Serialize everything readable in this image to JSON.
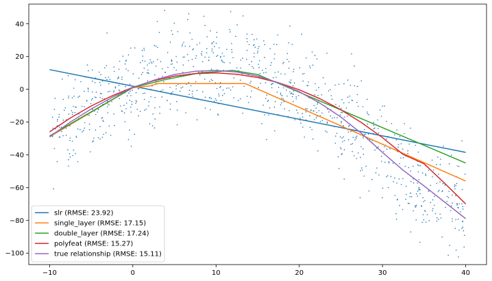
{
  "chart_data": {
    "type": "scatter",
    "title": "",
    "xlabel": "",
    "ylabel": "",
    "xlim": [
      -12.5,
      42.5
    ],
    "ylim": [
      -107,
      52
    ],
    "xticks": [
      -10,
      0,
      10,
      20,
      30,
      40
    ],
    "yticks": [
      -100,
      -80,
      -60,
      -40,
      -20,
      0,
      20,
      40
    ],
    "grid": false,
    "legend_position": "lower-left",
    "scatter": {
      "name": "",
      "color": "#1f77b4",
      "n_points": 1000,
      "x_range": [
        -10,
        40
      ],
      "noise_sd": 15,
      "underlying": "true relationship"
    },
    "series": [
      {
        "name": "slr (RMSE: 23.92)",
        "color": "#1f77b4",
        "x": [
          -10,
          40
        ],
        "y": [
          12,
          -38.5
        ]
      },
      {
        "name": "single_layer (RMSE: 17.15)",
        "color": "#ff7f0e",
        "x": [
          -10,
          0,
          2,
          3,
          13.5,
          40
        ],
        "y": [
          -29,
          1,
          2,
          3.5,
          3.5,
          -56
        ]
      },
      {
        "name": "double_layer (RMSE: 17.24)",
        "color": "#2ca02c",
        "x": [
          -10,
          0,
          4,
          8,
          12,
          15,
          40
        ],
        "y": [
          -28.5,
          1,
          6,
          10,
          11.5,
          9,
          -45
        ]
      },
      {
        "name": "polyfeat (RMSE: 15.27)",
        "color": "#d62728",
        "x": [
          -10,
          -7.5,
          -5,
          -2.5,
          0,
          2.5,
          5,
          7.5,
          10,
          12.5,
          15,
          17.5,
          20,
          22.5,
          25,
          27.5,
          30,
          32.5,
          35,
          37.5,
          40
        ],
        "y": [
          -26,
          -17.5,
          -10.2,
          -4,
          1.2,
          5.2,
          8,
          9.6,
          10,
          9.2,
          7.2,
          4,
          -0.3,
          -5.8,
          -12.5,
          -20.4,
          -29.5,
          -39.8,
          -45.5,
          -57.5,
          -70
        ]
      },
      {
        "name": "true relationship (RMSE: 15.11)",
        "color": "#9467bd",
        "x": [
          -10,
          -7.5,
          -5,
          -2.5,
          0,
          2.5,
          5,
          7.5,
          10,
          12.5,
          15,
          17.5,
          20,
          22.5,
          25,
          27.5,
          30,
          32.5,
          35,
          37.5,
          40
        ],
        "y": [
          -29,
          -20,
          -12,
          -5,
          1,
          5.5,
          9,
          11,
          11.5,
          10.5,
          8,
          4,
          -1.5,
          -8.5,
          -17,
          -27,
          -38.5,
          -49.5,
          -59,
          -69,
          -79
        ]
      }
    ]
  }
}
